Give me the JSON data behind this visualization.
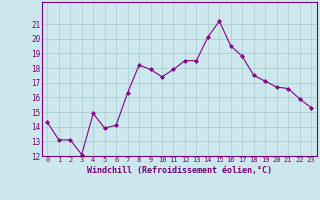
{
  "x": [
    0,
    1,
    2,
    3,
    4,
    5,
    6,
    7,
    8,
    9,
    10,
    11,
    12,
    13,
    14,
    15,
    16,
    17,
    18,
    19,
    20,
    21,
    22,
    23
  ],
  "y": [
    14.3,
    13.1,
    13.1,
    12.1,
    14.9,
    13.9,
    14.1,
    16.3,
    18.2,
    17.9,
    17.4,
    17.9,
    18.5,
    18.5,
    20.1,
    21.2,
    19.5,
    18.8,
    17.5,
    17.1,
    16.7,
    16.6,
    15.9,
    15.3
  ],
  "line_color": "#880088",
  "marker": "D",
  "marker_size": 2.0,
  "bg_color": "#cce8ec",
  "grid_color": "#aacccc",
  "tick_color": "#770077",
  "xlabel": "Windchill (Refroidissement éolien,°C)",
  "ylim": [
    12,
    22
  ],
  "xlim": [
    -0.5,
    23.5
  ],
  "yticks": [
    12,
    13,
    14,
    15,
    16,
    17,
    18,
    19,
    20,
    21
  ],
  "xticks": [
    0,
    1,
    2,
    3,
    4,
    5,
    6,
    7,
    8,
    9,
    10,
    11,
    12,
    13,
    14,
    15,
    16,
    17,
    18,
    19,
    20,
    21,
    22,
    23
  ],
  "font_size_tick": 5.0,
  "font_size_xlabel": 6.0,
  "linewidth": 0.8
}
